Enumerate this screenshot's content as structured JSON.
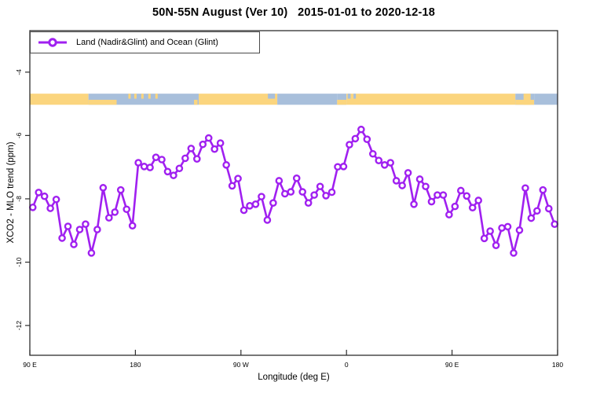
{
  "header": {
    "title": "50N-55N August (Ver 10)   2015-01-01 to 2020-12-18"
  },
  "legend": {
    "label": "Land (Nadir&Glint) and Ocean (Glint)"
  },
  "colors": {
    "series": "#A020F0",
    "marker_fill": "#ffffff",
    "land": "#FBD57E",
    "ocean": "#A8BFDB",
    "frame": "#2e2e2e",
    "text": "#000000"
  },
  "chart_data": {
    "type": "line",
    "title": "50N-55N August (Ver 10)   2015-01-01 to 2020-12-18",
    "xlabel": "Longitude (deg E)",
    "ylabel": "XCO2 - MLO trend (ppm)",
    "xlim": [
      90,
      540
    ],
    "ylim": [
      -12.94,
      -2.69
    ],
    "grid": false,
    "legend_position": "top-left",
    "x_ticks": [
      {
        "deg": 90,
        "label": "90 E"
      },
      {
        "deg": 180,
        "label": "180"
      },
      {
        "deg": 270,
        "label": "90 W"
      },
      {
        "deg": 360,
        "label": "0"
      },
      {
        "deg": 450,
        "label": "90 E"
      },
      {
        "deg": 540,
        "label": "180"
      }
    ],
    "y_ticks": [
      {
        "value": -4,
        "label": "-4"
      },
      {
        "value": -6,
        "label": "-6"
      },
      {
        "value": -8,
        "label": "-8"
      },
      {
        "value": -10,
        "label": "-10"
      },
      {
        "value": -12,
        "label": "-12"
      }
    ],
    "series": [
      {
        "name": "Land (Nadir&Glint) and Ocean (Glint)",
        "color": "#A020F0",
        "marker": "open-circle",
        "x": [
          92.5,
          97.5,
          102.5,
          107.5,
          112.5,
          117.5,
          122.5,
          127.5,
          132.5,
          137.5,
          142.5,
          147.5,
          152.5,
          157.5,
          162.5,
          167.5,
          172.5,
          177.5,
          182.5,
          187.5,
          192.5,
          197.5,
          202.5,
          207.5,
          212.5,
          217.5,
          222.5,
          227.5,
          232.5,
          237.5,
          242.5,
          247.5,
          252.5,
          257.5,
          262.5,
          267.5,
          272.5,
          277.5,
          282.5,
          287.5,
          292.5,
          297.5,
          302.5,
          307.5,
          312.5,
          317.5,
          322.5,
          327.5,
          332.5,
          337.5,
          342.5,
          347.5,
          352.5,
          357.5,
          362.5,
          367.5,
          372.5,
          377.5,
          382.5,
          387.5,
          392.5,
          397.5,
          402.5,
          407.5,
          412.5,
          417.5,
          422.5,
          427.5,
          432.5,
          437.5,
          442.5,
          447.5,
          452.5,
          457.5,
          462.5,
          467.5,
          472.5,
          477.5,
          482.5,
          487.5,
          492.5,
          497.5,
          502.5,
          507.5,
          512.5,
          517.5,
          522.5,
          527.5,
          532.5,
          537.5
        ],
        "values": [
          -8.27,
          -7.8,
          -7.92,
          -8.3,
          -8.02,
          -9.24,
          -8.87,
          -9.44,
          -8.97,
          -8.8,
          -9.71,
          -8.97,
          -7.65,
          -8.6,
          -8.42,
          -7.72,
          -8.33,
          -8.85,
          -6.86,
          -6.98,
          -7.01,
          -6.69,
          -6.76,
          -7.14,
          -7.26,
          -7.04,
          -6.72,
          -6.41,
          -6.74,
          -6.28,
          -6.08,
          -6.43,
          -6.24,
          -6.93,
          -7.59,
          -7.36,
          -8.36,
          -8.22,
          -8.17,
          -7.93,
          -8.67,
          -8.13,
          -7.43,
          -7.84,
          -7.78,
          -7.35,
          -7.78,
          -8.13,
          -7.88,
          -7.61,
          -7.9,
          -7.79,
          -6.99,
          -6.98,
          -6.29,
          -6.1,
          -5.81,
          -6.12,
          -6.58,
          -6.79,
          -6.93,
          -6.86,
          -7.43,
          -7.58,
          -7.18,
          -8.17,
          -7.38,
          -7.61,
          -8.09,
          -7.88,
          -7.88,
          -8.5,
          -8.24,
          -7.74,
          -7.91,
          -8.28,
          -8.05,
          -9.25,
          -9.02,
          -9.47,
          -8.92,
          -8.88,
          -9.71,
          -8.99,
          -7.66,
          -8.61,
          -8.38,
          -7.72,
          -8.31,
          -8.8
        ]
      }
    ],
    "surface_strip": {
      "description": "land/ocean map band at latitude 50N-55N, plotted near -4.9 ppm",
      "value_top": -4.68,
      "value_bottom": -5.03,
      "segments": [
        {
          "from": 90,
          "to": 140,
          "type": "land"
        },
        {
          "from": 140,
          "to": 164,
          "type": "coast"
        },
        {
          "from": 164,
          "to": 234,
          "type": "ocean"
        },
        {
          "from": 234,
          "to": 301,
          "type": "land"
        },
        {
          "from": 301,
          "to": 352,
          "type": "ocean"
        },
        {
          "from": 352,
          "to": 360,
          "type": "coast"
        },
        {
          "from": 360,
          "to": 504,
          "type": "land"
        },
        {
          "from": 504,
          "to": 520,
          "type": "coast"
        },
        {
          "from": 520,
          "to": 540,
          "type": "ocean"
        }
      ],
      "details": [
        {
          "deg": 174,
          "w": 2,
          "pos": "top",
          "type": "land"
        },
        {
          "deg": 179,
          "w": 2,
          "pos": "top",
          "type": "land"
        },
        {
          "deg": 185,
          "w": 2,
          "pos": "top",
          "type": "land"
        },
        {
          "deg": 191,
          "w": 2,
          "pos": "top",
          "type": "land"
        },
        {
          "deg": 197,
          "w": 2,
          "pos": "top",
          "type": "land"
        },
        {
          "deg": 230,
          "w": 3,
          "pos": "bottom",
          "type": "land"
        },
        {
          "deg": 293,
          "w": 6,
          "pos": "top",
          "type": "ocean"
        },
        {
          "deg": 361,
          "w": 2.5,
          "pos": "top",
          "type": "ocean"
        },
        {
          "deg": 366,
          "w": 2,
          "pos": "top",
          "type": "ocean"
        },
        {
          "deg": 511,
          "w": 6,
          "pos": "full",
          "type": "land"
        }
      ]
    }
  }
}
